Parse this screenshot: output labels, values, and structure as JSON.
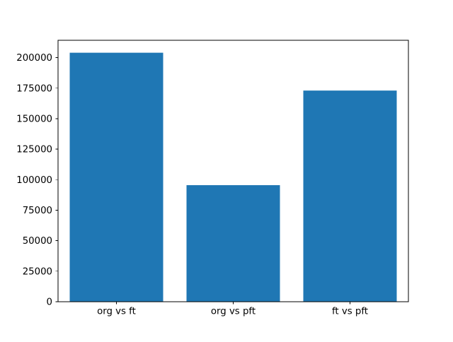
{
  "figure": {
    "background": "#ffffff"
  },
  "chart_data": {
    "type": "bar",
    "categories": [
      "org vs ft",
      "org vs pft",
      "ft vs pft"
    ],
    "values": [
      204000,
      95500,
      173000
    ],
    "title": "",
    "xlabel": "",
    "ylabel": "",
    "ylim": [
      0,
      214200
    ],
    "yticks": [
      0,
      25000,
      50000,
      75000,
      100000,
      125000,
      150000,
      175000,
      200000
    ],
    "bar_color": "#1f77b4",
    "bar_width_fraction": 0.8,
    "axes_color": "#000000",
    "text_color": "#000000",
    "grid": false,
    "legend": null
  }
}
